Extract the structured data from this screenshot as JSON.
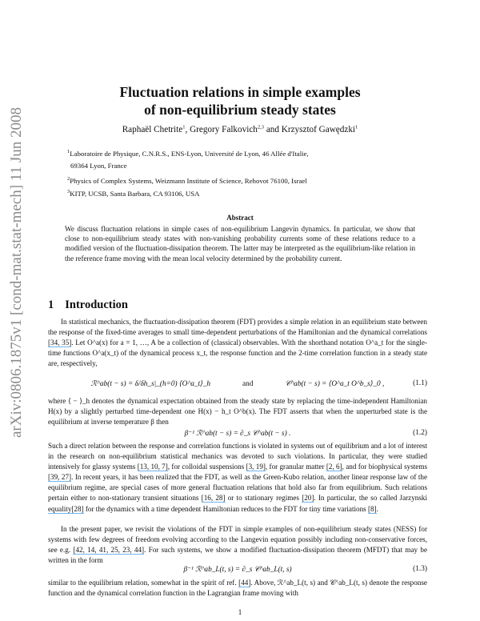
{
  "arxiv_stamp": "arXiv:0806.1875v1  [cond-mat.stat-mech]  11 Jun 2008",
  "title_line1": "Fluctuation relations in simple examples",
  "title_line2": "of non-equilibrium steady states",
  "authors": [
    {
      "name": "Raphaël Chetrite",
      "sup": "1",
      "sep": ", "
    },
    {
      "name": "Gregory Falkovich",
      "sup": "2,3",
      "sep": " and "
    },
    {
      "name": "Krzysztof Gawędzki",
      "sup": "1",
      "sep": ""
    }
  ],
  "affiliations": [
    {
      "sup": "1",
      "text": "Laboratoire de Physique, C.N.R.S., ENS-Lyon, Université de Lyon, 46 Allée d'Italie,"
    },
    {
      "sup": "",
      "text": "69364 Lyon, France"
    },
    {
      "sup": "2",
      "text": "Physics of Complex Systems, Weizmann Institute of Science, Rehovot 76100, Israel"
    },
    {
      "sup": "3",
      "text": "KITP, UCSB, Santa Barbara, CA 93106, USA"
    }
  ],
  "abstract_heading": "Abstract",
  "abstract": "We discuss fluctuation relations in simple cases of non-equilibrium Langevin dynamics. In particular, we show that close to non-equilibrium steady states with non-vanishing probability currents some of these relations reduce to a modified version of the fluctuation-dissipation theorem. The latter may be interpreted as the equilibrium-like relation in the reference frame moving with the mean local velocity determined by the probability current.",
  "section": {
    "number": "1",
    "title": "Introduction"
  },
  "p1": {
    "a": "In statistical mechanics, the fluctuation-dissipation theorem (FDT) provides a simple relation in an equilibrium state between the response of the fixed-time averages to small time-dependent perturbations of the Hamiltonian and the dynamical correlations ",
    "c1": "[34, 35]",
    "b": ". Let O^a(x) for a = 1, …, A be a collection of (classical) observables. With the shorthand notation O^a_t for the single-time functions O^a(x_t) of the dynamical process x_t, the response function and the 2-time correlation function in a steady state are, respectively,"
  },
  "eq1": {
    "left": "ℛ^ab(t − s) = δ/δh_s|_(h=0) ⟨O^a_t⟩_h",
    "and": "and",
    "right": "𝒞^ab(t − s) = ⟨O^a_t O^b_s⟩_0 ,",
    "num": "(1.1)"
  },
  "p2": "where ⟨ − ⟩_h denotes the dynamical expectation obtained from the steady state by replacing the time-independent Hamiltonian H(x) by a slightly perturbed time-dependent one H(x) − h_t O^b(x). The FDT asserts that when the unperturbed state is the equilibrium at inverse temperature β then",
  "eq2": {
    "text": "β⁻¹ ℛ^ab(t − s) = ∂_s 𝒞^ab(t − s) .",
    "num": "(1.2)"
  },
  "p3": {
    "a": "Such a direct relation between the response and correlation functions is violated in systems out of equilibrium and a lot of interest in the research on non-equilibrium statistical mechanics was devoted to such violations. In particular, they were studied intensively for glassy systems ",
    "c1": "[13, 10, 7]",
    "b": ", for colloidal suspensions ",
    "c2": "[3, 19]",
    "c": ", for granular matter ",
    "c3": "[2, 6]",
    "d": ", and for biophysical systems ",
    "c4": "[39, 27]",
    "e": ". In recent years, it has been realized that the FDT, as well as the Green-Kubo relation, another linear response law of the equilibrium regime, are special cases of more general fluctuation relations that hold also far from equilibrium. Such relations pertain either to non-stationary transient situations ",
    "c5": "[16, 28]",
    "f": " or to stationary regimes ",
    "c6": "[20]",
    "g": ". In particular, the so called Jarzynski ",
    "c7": "equality[28]",
    "h": " for the dynamics with a time dependent Hamiltonian reduces to the FDT for tiny time variations ",
    "c8": "[8]",
    "i": "."
  },
  "p4": {
    "a": "In the present paper, we revisit the violations of the FDT in simple examples of non-equilibrium steady states (NESS) for systems with few degrees of freedom evolving according to the Langevin equation possibly including non-conservative forces, see e.g. ",
    "c1": "[42, 14, 41, 25, 23, 44]",
    "b": ". For such systems, we show a modified fluctuation-dissipation theorem (MFDT) that may be written in the form"
  },
  "eq3": {
    "text": "β⁻¹ ℛ^ab_L(t, s) = ∂_s 𝒞^ab_L(t, s)",
    "num": "(1.3)"
  },
  "p5": {
    "a": "similar to the equilibrium relation, somewhat in the spirit of ref. ",
    "c1": "[44]",
    "b": ". Above, ℛ^ab_L(t, s) and 𝒞^ab_L(t, s) denote the response function and the dynamical correlation function in the Lagrangian frame moving with"
  },
  "page_number": "1",
  "colors": {
    "link_underline": "#6fb3f0",
    "stamp": "#8a8a8a"
  }
}
